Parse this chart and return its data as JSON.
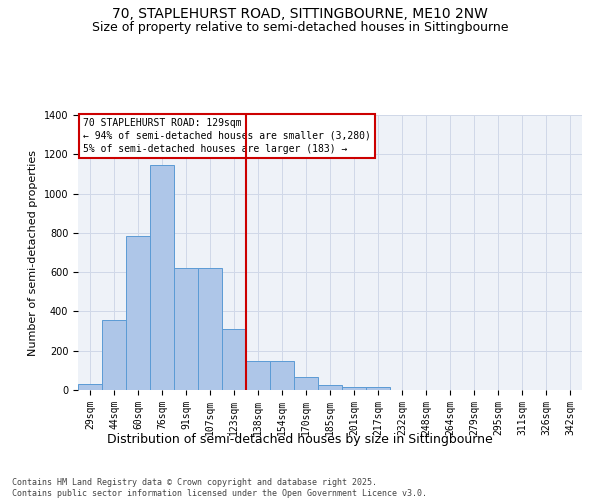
{
  "title_line1": "70, STAPLEHURST ROAD, SITTINGBOURNE, ME10 2NW",
  "title_line2": "Size of property relative to semi-detached houses in Sittingbourne",
  "xlabel": "Distribution of semi-detached houses by size in Sittingbourne",
  "ylabel": "Number of semi-detached properties",
  "annotation_line1": "70 STAPLEHURST ROAD: 129sqm",
  "annotation_line2": "← 94% of semi-detached houses are smaller (3,280)",
  "annotation_line3": "5% of semi-detached houses are larger (183) →",
  "footer_line1": "Contains HM Land Registry data © Crown copyright and database right 2025.",
  "footer_line2": "Contains public sector information licensed under the Open Government Licence v3.0.",
  "bar_labels": [
    "29sqm",
    "44sqm",
    "60sqm",
    "76sqm",
    "91sqm",
    "107sqm",
    "123sqm",
    "138sqm",
    "154sqm",
    "170sqm",
    "185sqm",
    "201sqm",
    "217sqm",
    "232sqm",
    "248sqm",
    "264sqm",
    "279sqm",
    "295sqm",
    "311sqm",
    "326sqm",
    "342sqm"
  ],
  "bar_heights": [
    30,
    355,
    785,
    1145,
    620,
    620,
    310,
    150,
    150,
    65,
    25,
    13,
    13,
    0,
    0,
    0,
    0,
    0,
    0,
    0,
    0
  ],
  "bar_color": "#aec6e8",
  "bar_edge_color": "#5b9bd5",
  "vline_x": 6.5,
  "vline_color": "#cc0000",
  "ylim": [
    0,
    1400
  ],
  "yticks": [
    0,
    200,
    400,
    600,
    800,
    1000,
    1200,
    1400
  ],
  "grid_color": "#d0d8e8",
  "background_color": "#eef2f8",
  "annotation_box_edge": "#cc0000",
  "title_fontsize": 10,
  "subtitle_fontsize": 9,
  "axis_label_fontsize": 8,
  "tick_fontsize": 7,
  "ylabel_fontsize": 8
}
